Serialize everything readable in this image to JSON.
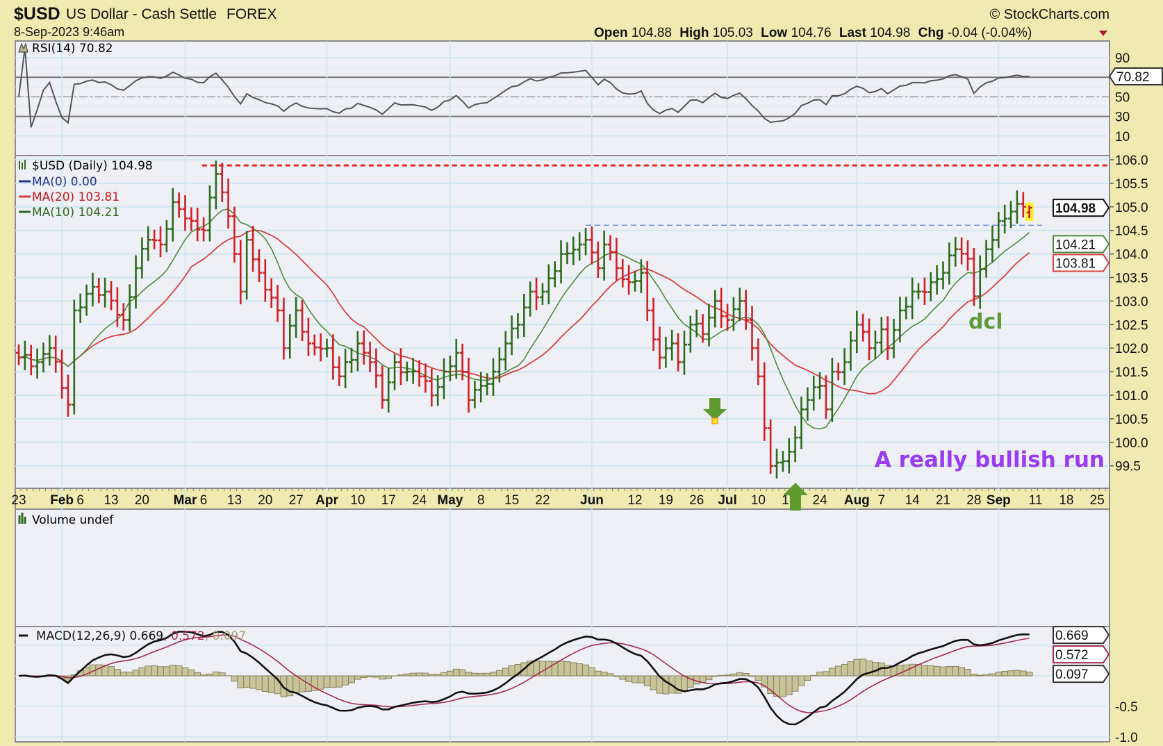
{
  "header": {
    "symbol": "$USD",
    "name": "US Dollar - Cash Settle",
    "exchange": "FOREX",
    "datetime": "8-Sep-2023 9:46am",
    "watermark": "© StockCharts.com",
    "open_label": "Open",
    "open": "104.88",
    "high_label": "High",
    "high": "105.03",
    "low_label": "Low",
    "low": "104.76",
    "last_label": "Last",
    "last": "104.98",
    "chg_label": "Chg",
    "chg": "-0.04 (-0.04%)",
    "chg_icon": "triangle-down-icon"
  },
  "rsi_panel": {
    "legend": "RSI(14) 70.82",
    "value_box": "70.82",
    "ticks": [
      "90",
      "50",
      "30",
      "10"
    ]
  },
  "price_panel": {
    "legend_main": "$USD (Daily) 104.98",
    "legend_ma0": "MA(0) 0.00",
    "legend_ma20": "MA(20) 103.81",
    "legend_ma10": "MA(10) 104.21",
    "last_box": "104.98",
    "ma10_box": "104.21",
    "ma20_box": "103.81",
    "ticks": [
      "106.0",
      "105.5",
      "105.0",
      "104.5",
      "104.0",
      "103.5",
      "103.0",
      "102.5",
      "102.0",
      "101.5",
      "101.0",
      "100.5",
      "100.0",
      "99.5"
    ],
    "annotation_dcl": "dcl",
    "annotation_run": "A really bullish run"
  },
  "volume_panel": {
    "legend": "Volume undef"
  },
  "macd_panel": {
    "legend_name": "MACD(12,26,9)",
    "legend_macd": "0.669",
    "legend_signal": "0.572",
    "legend_hist": "0.097",
    "ticks": [
      "-0.5",
      "-1.0"
    ]
  },
  "colors": {
    "up_bar": "#2f6a1e",
    "down_bar": "#d21f26",
    "ma20": "#d9403f",
    "ma10": "#4f8a3c",
    "ma0": "#23348f",
    "macd": "#111111",
    "signal": "#a52a52",
    "histogram": "#c8c49a",
    "annotation_run": "#9a3cf2",
    "annotation_dcl": "#5e9a3a",
    "resistance": "#e8262b",
    "support": "#6f8fe0"
  },
  "chart_data": {
    "type": "ohlc",
    "title": "$USD US Dollar - Cash Settle FOREX",
    "x_ticks": [
      {
        "label": "23",
        "date": "2023-01-23",
        "bold": false
      },
      {
        "label": "Feb",
        "date": "2023-02-01",
        "bold": true
      },
      {
        "label": "6",
        "date": "2023-02-06",
        "bold": false
      },
      {
        "label": "13",
        "date": "2023-02-13",
        "bold": false
      },
      {
        "label": "20",
        "date": "2023-02-20",
        "bold": false
      },
      {
        "label": "Mar",
        "date": "2023-03-01",
        "bold": true
      },
      {
        "label": "6",
        "date": "2023-03-06",
        "bold": false
      },
      {
        "label": "13",
        "date": "2023-03-13",
        "bold": false
      },
      {
        "label": "20",
        "date": "2023-03-20",
        "bold": false
      },
      {
        "label": "27",
        "date": "2023-03-27",
        "bold": false
      },
      {
        "label": "Apr",
        "date": "2023-04-03",
        "bold": true
      },
      {
        "label": "10",
        "date": "2023-04-10",
        "bold": false
      },
      {
        "label": "17",
        "date": "2023-04-17",
        "bold": false
      },
      {
        "label": "24",
        "date": "2023-04-24",
        "bold": false
      },
      {
        "label": "May",
        "date": "2023-05-01",
        "bold": true
      },
      {
        "label": "8",
        "date": "2023-05-08",
        "bold": false
      },
      {
        "label": "15",
        "date": "2023-05-15",
        "bold": false
      },
      {
        "label": "22",
        "date": "2023-05-22",
        "bold": false
      },
      {
        "label": "Jun",
        "date": "2023-06-01",
        "bold": true
      },
      {
        "label": "12",
        "date": "2023-06-12",
        "bold": false
      },
      {
        "label": "19",
        "date": "2023-06-19",
        "bold": false
      },
      {
        "label": "26",
        "date": "2023-06-26",
        "bold": false
      },
      {
        "label": "Jul",
        "date": "2023-07-03",
        "bold": true
      },
      {
        "label": "10",
        "date": "2023-07-10",
        "bold": false
      },
      {
        "label": "17",
        "date": "2023-07-17",
        "bold": false
      },
      {
        "label": "24",
        "date": "2023-07-24",
        "bold": false
      },
      {
        "label": "Aug",
        "date": "2023-08-01",
        "bold": true
      },
      {
        "label": "7",
        "date": "2023-08-07",
        "bold": false
      },
      {
        "label": "14",
        "date": "2023-08-14",
        "bold": false
      },
      {
        "label": "21",
        "date": "2023-08-21",
        "bold": false
      },
      {
        "label": "28",
        "date": "2023-08-28",
        "bold": false
      },
      {
        "label": "Sep",
        "date": "2023-09-01",
        "bold": true
      },
      {
        "label": "11",
        "date": "2023-09-11",
        "bold": false
      },
      {
        "label": "18",
        "date": "2023-09-18",
        "bold": false
      },
      {
        "label": "25",
        "date": "2023-09-25",
        "bold": false
      }
    ],
    "price_ylim": [
      99.3,
      106.1
    ],
    "rsi_ylim": [
      0,
      100
    ],
    "rsi_levels": [
      70,
      50,
      30
    ],
    "macd_ylim": [
      -1.05,
      0.75
    ],
    "grid": true,
    "resistance_level": 105.88,
    "support_level": 104.61,
    "closes": [
      [
        "2023-01-23",
        101.8
      ],
      [
        "2023-01-26",
        101.7
      ],
      [
        "2023-01-30",
        102.0
      ],
      [
        "2023-02-02",
        100.8
      ],
      [
        "2023-02-03",
        102.8
      ],
      [
        "2023-02-08",
        103.3
      ],
      [
        "2023-02-10",
        103.2
      ],
      [
        "2023-02-15",
        102.6
      ],
      [
        "2023-02-17",
        103.7
      ],
      [
        "2023-02-21",
        104.3
      ],
      [
        "2023-02-23",
        104.2
      ],
      [
        "2023-02-27",
        105.1
      ],
      [
        "2023-03-02",
        104.7
      ],
      [
        "2023-03-06",
        104.5
      ],
      [
        "2023-03-08",
        105.7
      ],
      [
        "2023-03-10",
        104.8
      ],
      [
        "2023-03-13",
        104.0
      ],
      [
        "2023-03-14",
        103.2
      ],
      [
        "2023-03-15",
        104.3
      ],
      [
        "2023-03-17",
        103.6
      ],
      [
        "2023-03-22",
        102.8
      ],
      [
        "2023-03-23",
        102.0
      ],
      [
        "2023-03-27",
        102.8
      ],
      [
        "2023-03-29",
        102.1
      ],
      [
        "2023-04-03",
        102.0
      ],
      [
        "2023-04-05",
        101.4
      ],
      [
        "2023-04-10",
        102.1
      ],
      [
        "2023-04-12",
        101.7
      ],
      [
        "2023-04-14",
        100.9
      ],
      [
        "2023-04-18",
        101.7
      ],
      [
        "2023-04-20",
        101.5
      ],
      [
        "2023-04-24",
        101.4
      ],
      [
        "2023-04-26",
        101.0
      ],
      [
        "2023-04-28",
        101.5
      ],
      [
        "2023-05-02",
        101.9
      ],
      [
        "2023-05-04",
        100.9
      ],
      [
        "2023-05-08",
        101.2
      ],
      [
        "2023-05-10",
        101.5
      ],
      [
        "2023-05-12",
        102.1
      ],
      [
        "2023-05-16",
        102.5
      ],
      [
        "2023-05-18",
        103.2
      ],
      [
        "2023-05-22",
        103.2
      ],
      [
        "2023-05-25",
        104.0
      ],
      [
        "2023-05-30",
        104.2
      ],
      [
        "2023-05-31",
        104.3
      ],
      [
        "2023-06-02",
        103.7
      ],
      [
        "2023-06-05",
        104.2
      ],
      [
        "2023-06-07",
        103.7
      ],
      [
        "2023-06-09",
        103.4
      ],
      [
        "2023-06-13",
        103.6
      ],
      [
        "2023-06-14",
        102.8
      ],
      [
        "2023-06-16",
        101.8
      ],
      [
        "2023-06-20",
        102.1
      ],
      [
        "2023-06-21",
        101.7
      ],
      [
        "2023-06-23",
        102.5
      ],
      [
        "2023-06-27",
        102.3
      ],
      [
        "2023-06-29",
        103.0
      ],
      [
        "2023-07-03",
        102.6
      ],
      [
        "2023-07-05",
        103.0
      ],
      [
        "2023-07-06",
        102.6
      ],
      [
        "2023-07-07",
        102.0
      ],
      [
        "2023-07-10",
        101.4
      ],
      [
        "2023-07-11",
        100.3
      ],
      [
        "2023-07-12",
        99.5
      ],
      [
        "2023-07-14",
        99.6
      ],
      [
        "2023-07-17",
        99.8
      ],
      [
        "2023-07-18",
        100.1
      ],
      [
        "2023-07-19",
        100.7
      ],
      [
        "2023-07-20",
        100.9
      ],
      [
        "2023-07-24",
        101.2
      ],
      [
        "2023-07-25",
        100.7
      ],
      [
        "2023-07-26",
        101.5
      ],
      [
        "2023-07-28",
        101.7
      ],
      [
        "2023-08-01",
        102.5
      ],
      [
        "2023-08-03",
        102.0
      ],
      [
        "2023-08-07",
        102.4
      ],
      [
        "2023-08-08",
        102.0
      ],
      [
        "2023-08-10",
        102.8
      ],
      [
        "2023-08-14",
        103.2
      ],
      [
        "2023-08-15",
        103.2
      ],
      [
        "2023-08-17",
        103.4
      ],
      [
        "2023-08-21",
        103.6
      ],
      [
        "2023-08-23",
        104.1
      ],
      [
        "2023-08-25",
        103.9
      ],
      [
        "2023-08-28",
        103.1
      ],
      [
        "2023-08-30",
        104.1
      ],
      [
        "2023-09-01",
        104.7
      ],
      [
        "2023-09-05",
        104.9
      ],
      [
        "2023-09-07",
        105.0
      ],
      [
        "2023-09-08",
        104.98
      ]
    ],
    "last_bar": {
      "open": 104.88,
      "high": 105.03,
      "low": 104.76,
      "close": 104.98
    },
    "ma10_last": 104.21,
    "ma20_last": 103.81,
    "rsi_last": 70.82,
    "macd_last": {
      "macd": 0.669,
      "signal": 0.572,
      "histogram": 0.097
    }
  }
}
